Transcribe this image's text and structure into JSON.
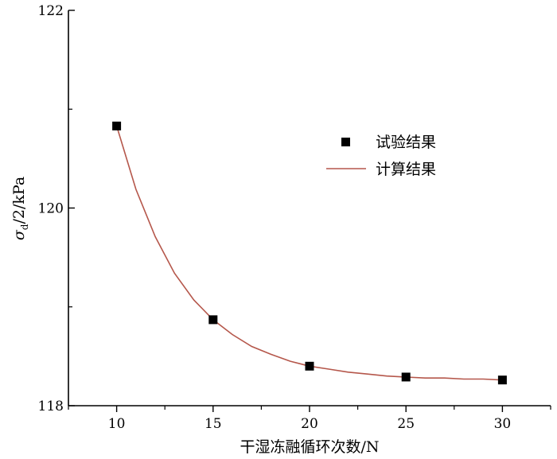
{
  "chart_data": {
    "type": "scatter",
    "xlabel": "干湿冻融循环次数/N",
    "ylabel": "σd/2/kPa",
    "ylabel_parts": {
      "main": "σ",
      "sub": "d",
      "rest": "/2/kPa"
    },
    "xlim": [
      7.5,
      32.5
    ],
    "ylim": [
      118,
      122
    ],
    "xticks": [
      10,
      15,
      20,
      25,
      30
    ],
    "yticks": [
      118,
      120,
      122
    ],
    "grid": false,
    "legend_position": "right",
    "series": [
      {
        "name": "试验结果",
        "kind": "points",
        "color": "#000000",
        "x": [
          10,
          15,
          20,
          25,
          30
        ],
        "y": [
          120.83,
          118.87,
          118.4,
          118.29,
          118.26
        ]
      },
      {
        "name": "计算结果",
        "kind": "line",
        "color": "#b5574b",
        "x": [
          10,
          11,
          12,
          13,
          14,
          15,
          16,
          17,
          18,
          19,
          20,
          21,
          22,
          23,
          24,
          25,
          26,
          27,
          28,
          29,
          30
        ],
        "y": [
          120.83,
          120.19,
          119.71,
          119.34,
          119.07,
          118.87,
          118.72,
          118.6,
          118.52,
          118.45,
          118.4,
          118.37,
          118.34,
          118.32,
          118.3,
          118.29,
          118.28,
          118.28,
          118.27,
          118.27,
          118.26
        ]
      }
    ]
  }
}
